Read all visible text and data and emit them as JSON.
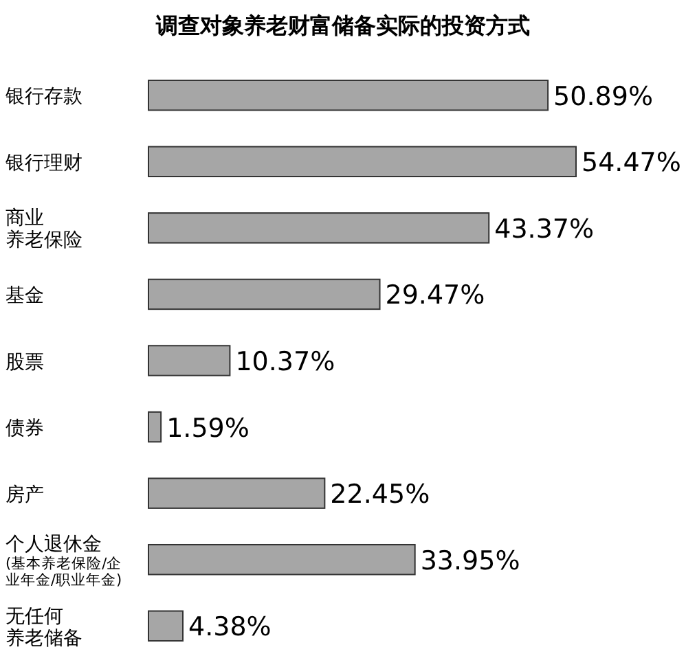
{
  "chart_data": {
    "type": "bar",
    "orientation": "horizontal",
    "title": "调查对象养老财富储备实际的投资方式",
    "categories": [
      "银行存款",
      "银行理财",
      "商业养老保险",
      "基金",
      "股票",
      "债券",
      "房产",
      "个人退休金(基本养老保险/企业年金/职业年金)",
      "无任何养老储备"
    ],
    "values": [
      50.89,
      54.47,
      43.37,
      29.47,
      10.37,
      1.59,
      22.45,
      33.95,
      4.38
    ],
    "value_labels": [
      "50.89%",
      "54.47%",
      "43.37%",
      "29.47%",
      "10.37%",
      "1.59%",
      "22.45%",
      "33.95%",
      "4.38%"
    ],
    "color": "#a6a6a6",
    "xlim": [
      0,
      54.47
    ]
  }
}
